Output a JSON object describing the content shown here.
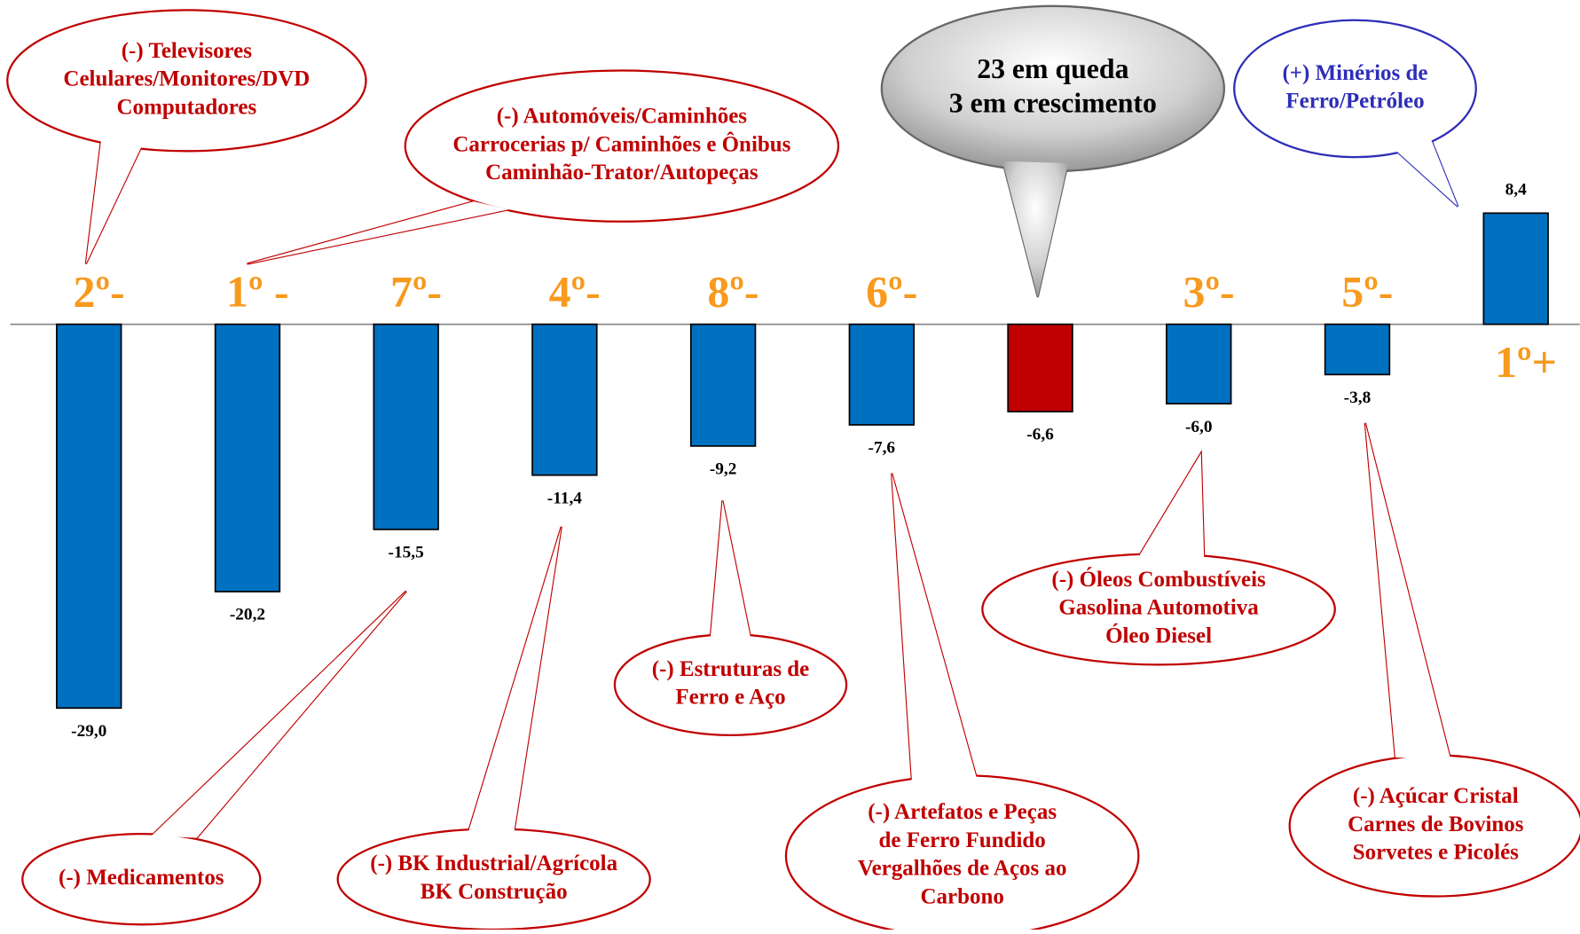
{
  "chart_data": {
    "type": "bar",
    "categories": [
      null,
      null,
      null,
      null,
      null,
      null,
      null,
      null,
      null,
      null
    ],
    "values": [
      -29.0,
      -20.2,
      -15.5,
      -11.4,
      -9.2,
      -7.6,
      -6.6,
      -6.0,
      -3.8,
      8.4
    ],
    "value_labels": [
      "-29,0",
      "-20,2",
      "-15,5",
      "-11,4",
      "-9,2",
      "-7,6",
      "-6,6",
      "-6,0",
      "-3,8",
      "8,4"
    ],
    "colors": [
      "#0070c0",
      "#0070c0",
      "#0070c0",
      "#0070c0",
      "#0070c0",
      "#0070c0",
      "#c00000",
      "#0070c0",
      "#0070c0",
      "#0070c0"
    ],
    "rank_labels": [
      "2º-",
      "1º -",
      "7º-",
      "4º-",
      "8º-",
      "6º-",
      null,
      "3º-",
      "5º-",
      "1º+"
    ],
    "rank_color": "#f79a1e",
    "annotations": [
      {
        "lines": [
          "(-)  Televisores",
          "Celulares/Monitores/DVD",
          "Computadores"
        ],
        "color": "#c00000"
      },
      {
        "lines": [
          "(-) Automóveis/Caminhões",
          "Carrocerias p/ Caminhões e Ônibus",
          "Caminhão-Trator/Autopeças"
        ],
        "color": "#c00000"
      },
      {
        "lines": [
          "23 em queda",
          "3 em crescimento"
        ],
        "color": "#000000"
      },
      {
        "lines": [
          "(+) Minérios de",
          "Ferro/Petróleo"
        ],
        "color": "#2e2eb8"
      },
      {
        "lines": [
          "(-) Medicamentos"
        ],
        "color": "#c00000"
      },
      {
        "lines": [
          "(-) BK Industrial/Agrícola",
          "BK Construção"
        ],
        "color": "#c00000"
      },
      {
        "lines": [
          "(-)  Estruturas de",
          "Ferro e Aço"
        ],
        "color": "#c00000"
      },
      {
        "lines": [
          "(-) Artefatos e Peças",
          "de Ferro Fundido",
          "Vergalhões de Aços ao",
          "Carbono"
        ],
        "color": "#c00000"
      },
      {
        "lines": [
          "(-) Óleos Combustíveis",
          "Gasolina Automotiva",
          "Óleo Diesel"
        ],
        "color": "#c00000"
      },
      {
        "lines": [
          "(-) Açúcar Cristal",
          "Carnes de Bovinos",
          "Sorvetes e Picolés"
        ],
        "color": "#c00000"
      }
    ]
  }
}
